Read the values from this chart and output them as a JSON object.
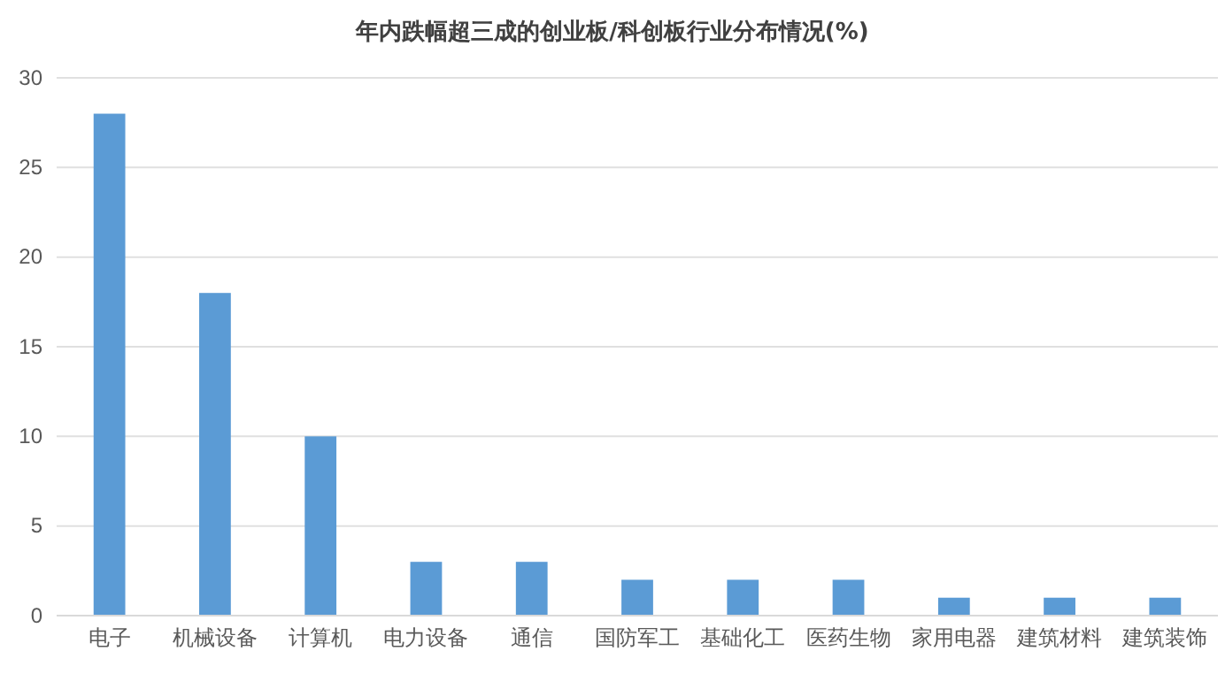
{
  "chart_data": {
    "type": "bar",
    "title": "年内跌幅超三成的创业板/科创板行业分布情况(%)",
    "categories": [
      "电子",
      "机械设备",
      "计算机",
      "电力设备",
      "通信",
      "国防军工",
      "基础化工",
      "医药生物",
      "家用电器",
      "建筑材料",
      "建筑装饰"
    ],
    "values": [
      28,
      18,
      10,
      3,
      3,
      2,
      2,
      2,
      1,
      1,
      1
    ],
    "color": "#5b9bd5",
    "ylim": [
      0,
      30
    ],
    "yticks": [
      0,
      5,
      10,
      15,
      20,
      25,
      30
    ],
    "grid": "y"
  }
}
